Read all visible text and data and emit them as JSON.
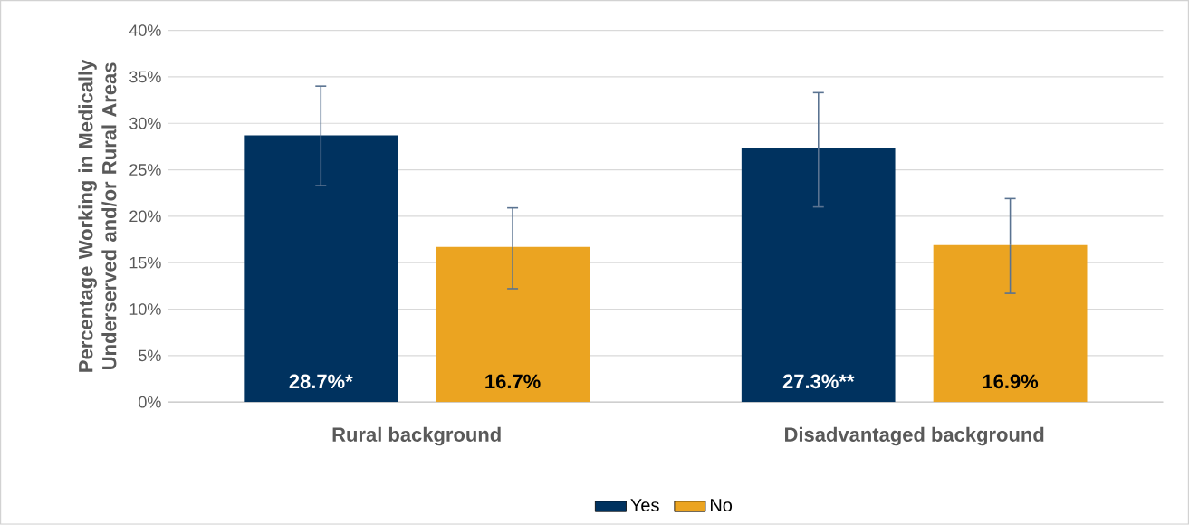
{
  "chart_data": {
    "type": "bar",
    "ylabel": "Percentage Working in Medically Underserved and/or Rural Areas",
    "categories": [
      "Rural background",
      "Disadvantaged background"
    ],
    "series": [
      {
        "name": "Yes",
        "color": "#00325f",
        "values": [
          28.7,
          27.3
        ],
        "errors": [
          [
            23.3,
            34.0
          ],
          [
            21.0,
            33.3
          ]
        ],
        "value_labels": [
          "28.7%*",
          "27.3%**"
        ]
      },
      {
        "name": "No",
        "color": "#eba421",
        "values": [
          16.7,
          16.9
        ],
        "errors": [
          [
            12.2,
            20.9
          ],
          [
            11.7,
            21.9
          ]
        ],
        "value_labels": [
          "16.7%",
          "16.9%"
        ]
      }
    ],
    "ylim": [
      0,
      40
    ],
    "yticks": [
      {
        "value": 0,
        "label": "0%"
      },
      {
        "value": 5,
        "label": "5%"
      },
      {
        "value": 10,
        "label": "10%"
      },
      {
        "value": 15,
        "label": "15%"
      },
      {
        "value": 20,
        "label": "20%"
      },
      {
        "value": 25,
        "label": "25%"
      },
      {
        "value": 30,
        "label": "30%"
      },
      {
        "value": 35,
        "label": "35%"
      },
      {
        "value": 40,
        "label": "40%"
      }
    ],
    "grid": "y",
    "legend": "bottom"
  }
}
